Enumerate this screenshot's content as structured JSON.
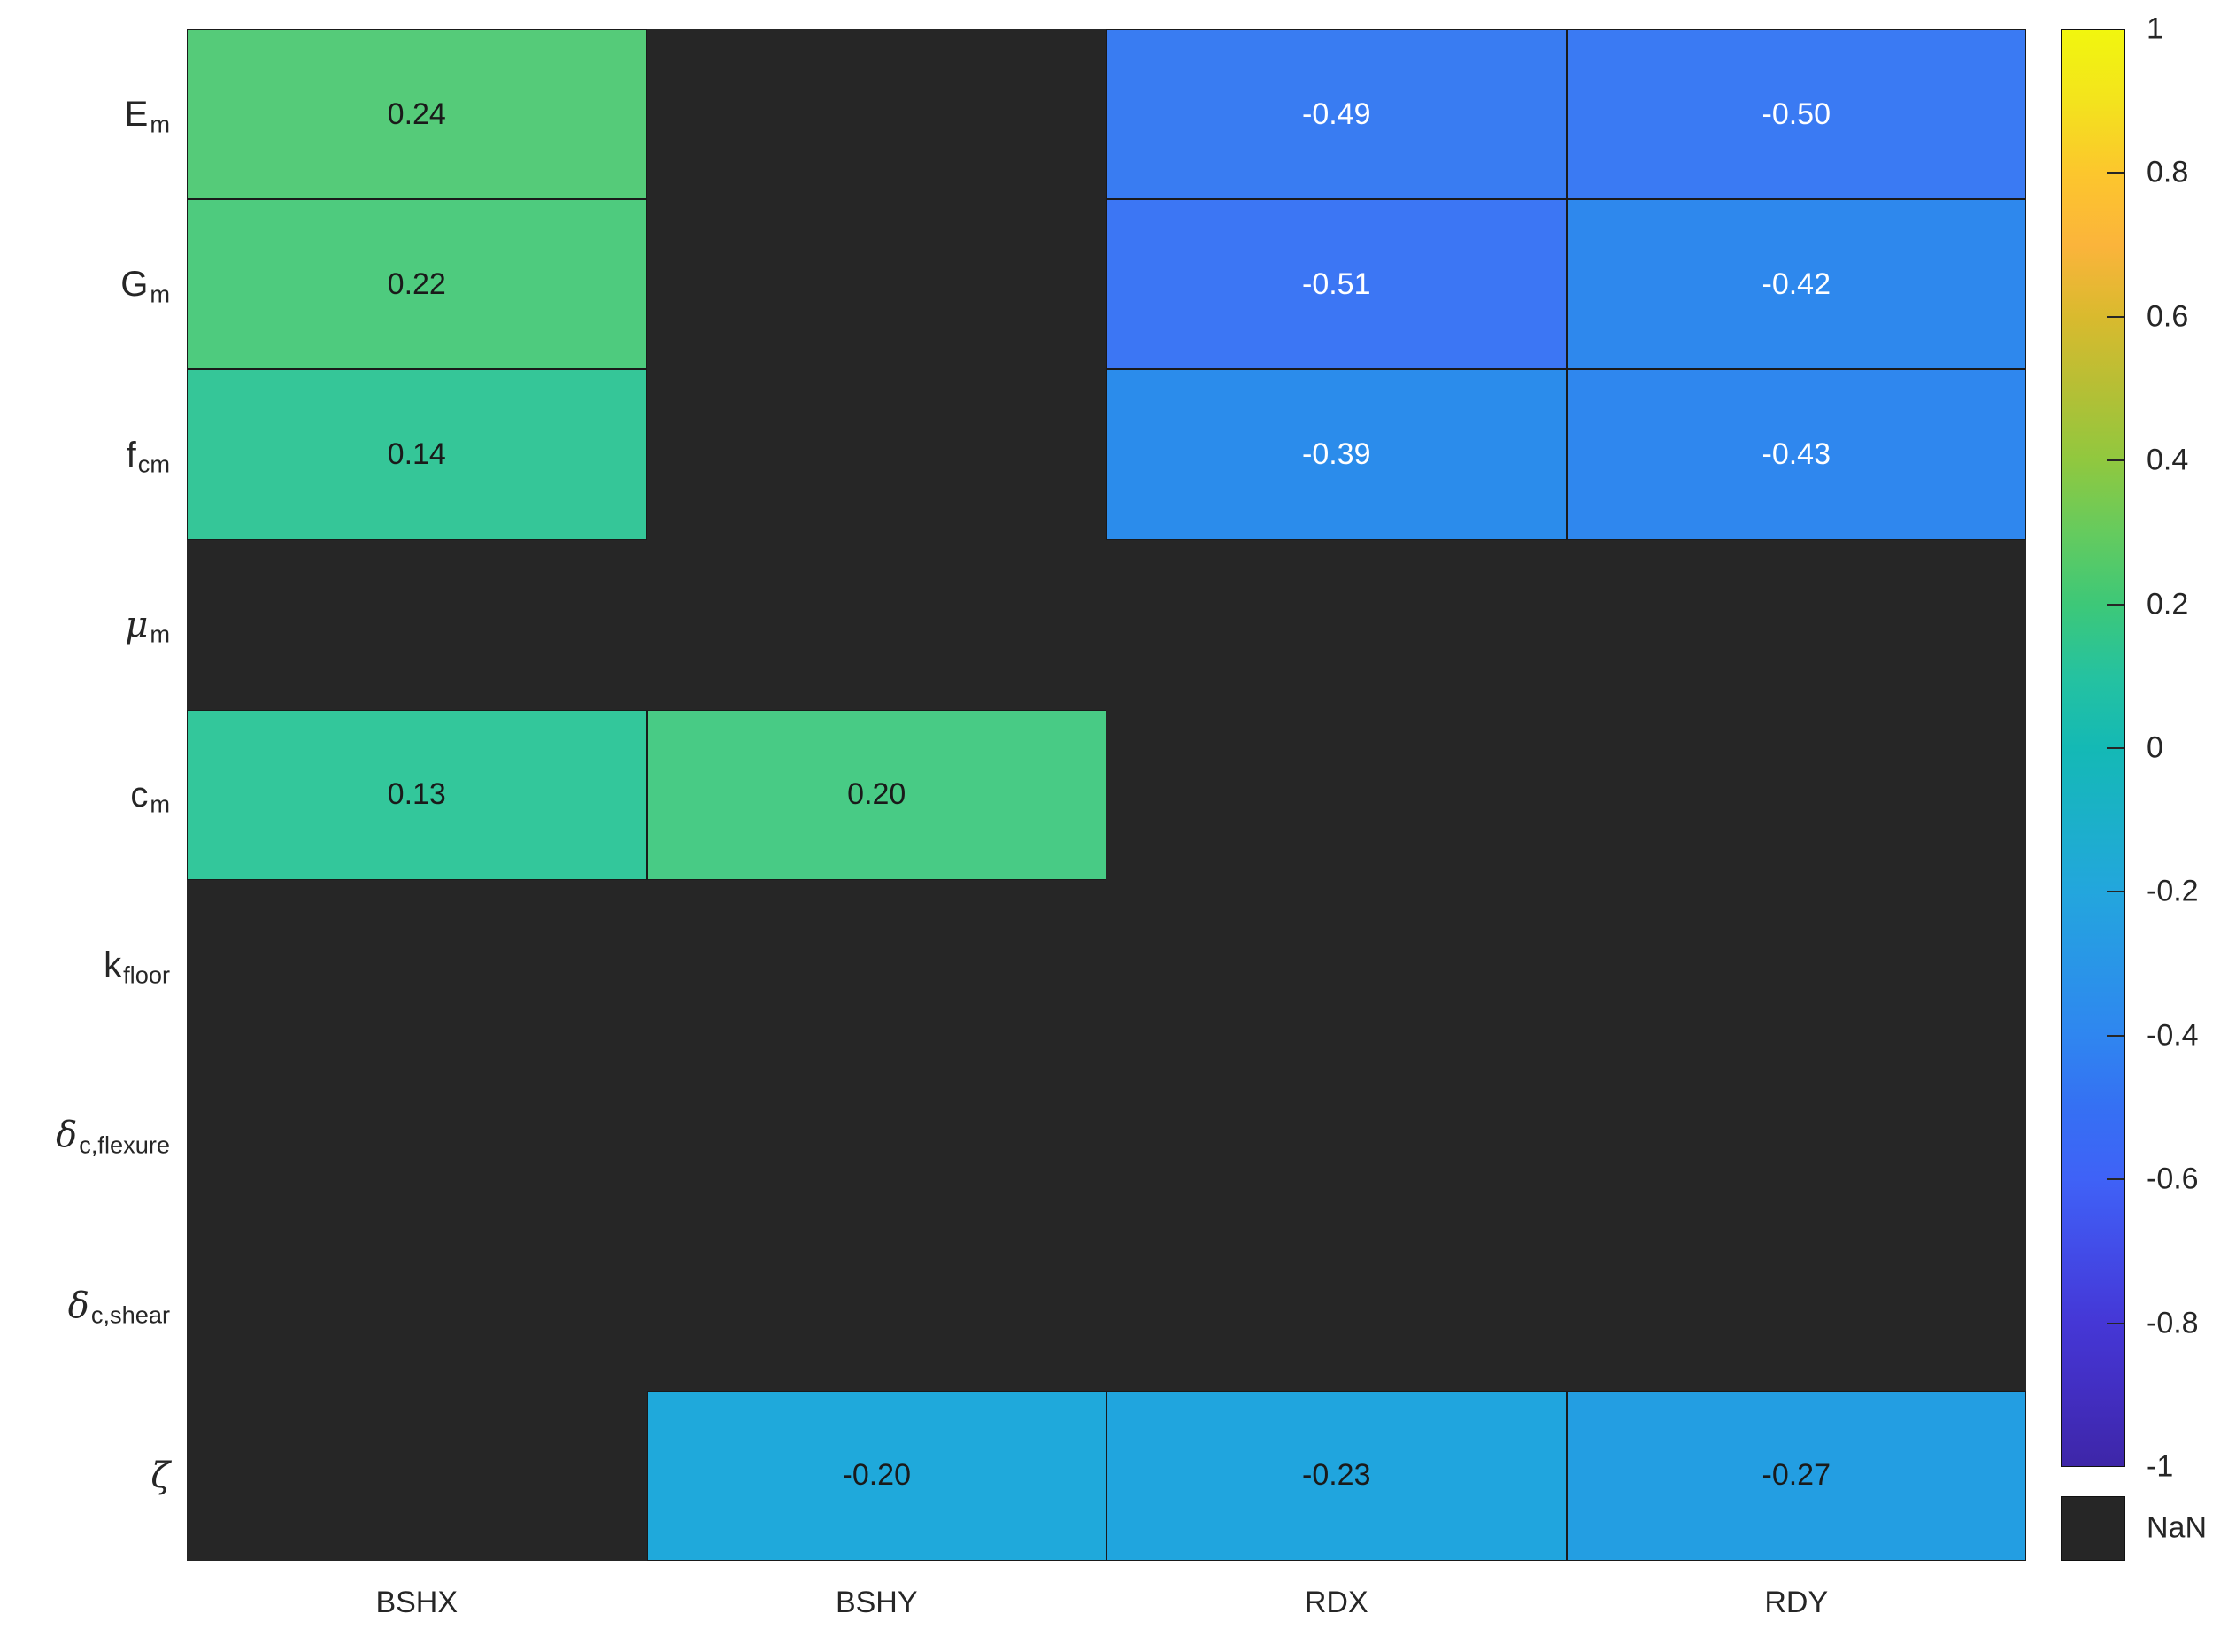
{
  "figure": {
    "background": "#ffffff",
    "nan_color": "#262626",
    "grid_line_color": "#1a1a1a"
  },
  "chart_data": {
    "type": "heatmap",
    "title": "",
    "xlabel": "",
    "ylabel": "",
    "columns": [
      "BSHX",
      "BSHY",
      "RDX",
      "RDY"
    ],
    "rows": [
      {
        "main": "E",
        "sub": "m",
        "greek": false
      },
      {
        "main": "G",
        "sub": "m",
        "greek": false
      },
      {
        "main": "f",
        "sub": "cm",
        "greek": false
      },
      {
        "main": "μ",
        "sub": "m",
        "greek": true
      },
      {
        "main": "c",
        "sub": "m",
        "greek": false
      },
      {
        "main": "k",
        "sub": "floor",
        "greek": false
      },
      {
        "main": "δ",
        "sub": "c,flexure",
        "greek": true
      },
      {
        "main": "δ",
        "sub": "c,shear",
        "greek": true
      },
      {
        "main": "ζ",
        "sub": "",
        "greek": true
      }
    ],
    "values": [
      [
        0.24,
        null,
        -0.49,
        -0.5
      ],
      [
        0.22,
        null,
        -0.51,
        -0.42
      ],
      [
        0.14,
        null,
        -0.39,
        -0.43
      ],
      [
        null,
        null,
        null,
        null
      ],
      [
        0.13,
        0.2,
        null,
        null
      ],
      [
        null,
        null,
        null,
        null
      ],
      [
        null,
        null,
        null,
        null
      ],
      [
        null,
        null,
        null,
        null
      ],
      [
        null,
        -0.2,
        -0.23,
        -0.27
      ]
    ],
    "cell_text": [
      [
        "0.24",
        "",
        "-0.49",
        "-0.50"
      ],
      [
        "0.22",
        "",
        "-0.51",
        "-0.42"
      ],
      [
        "0.14",
        "",
        "-0.39",
        "-0.43"
      ],
      [
        "",
        "",
        "",
        ""
      ],
      [
        "0.13",
        "0.20",
        "",
        ""
      ],
      [
        "",
        "",
        "",
        ""
      ],
      [
        "",
        "",
        "",
        ""
      ],
      [
        "",
        "",
        "",
        ""
      ],
      [
        "",
        "-0.20",
        "-0.23",
        "-0.27"
      ]
    ],
    "cell_colors": [
      [
        "#55cb79",
        null,
        "#397cf2",
        "#3a7af3"
      ],
      [
        "#4ecb7e",
        null,
        "#3c76f4",
        "#2e88ed"
      ],
      [
        "#35c698",
        null,
        "#2b8ceb",
        "#2f87ee"
      ],
      [
        null,
        null,
        null,
        null
      ],
      [
        "#33c79b",
        "#48cb85",
        null,
        null
      ],
      [
        null,
        null,
        null,
        null
      ],
      [
        null,
        null,
        null,
        null
      ],
      [
        null,
        null,
        null,
        null
      ],
      [
        null,
        "#1fa9db",
        "#20a5de",
        "#239ee2"
      ]
    ],
    "cell_text_colors": [
      [
        "#1a1a1a",
        null,
        "#ffffff",
        "#ffffff"
      ],
      [
        "#1a1a1a",
        null,
        "#ffffff",
        "#ffffff"
      ],
      [
        "#1a1a1a",
        null,
        "#ffffff",
        "#ffffff"
      ],
      [
        null,
        null,
        null,
        null
      ],
      [
        "#1a1a1a",
        "#1a1a1a",
        null,
        null
      ],
      [
        null,
        null,
        null,
        null
      ],
      [
        null,
        null,
        null,
        null
      ],
      [
        null,
        null,
        null,
        null
      ],
      [
        null,
        "#1a1a1a",
        "#1a1a1a",
        "#1a1a1a"
      ]
    ],
    "colorbar": {
      "min": -1,
      "max": 1,
      "tick_labels": [
        "1",
        "0.8",
        "0.6",
        "0.4",
        "0.2",
        "0",
        "-0.2",
        "-0.4",
        "-0.6",
        "-0.8",
        "-1"
      ],
      "nan_label": "NaN",
      "gradient_stops": [
        {
          "v": 1.0,
          "c": "#f2f60e"
        },
        {
          "v": 0.9,
          "c": "#f3e31d"
        },
        {
          "v": 0.8,
          "c": "#fcc62d"
        },
        {
          "v": 0.7,
          "c": "#fbb43b"
        },
        {
          "v": 0.6,
          "c": "#d9ba2e"
        },
        {
          "v": 0.5,
          "c": "#b5bf35"
        },
        {
          "v": 0.4,
          "c": "#90c83f"
        },
        {
          "v": 0.3,
          "c": "#65cb5e"
        },
        {
          "v": 0.2,
          "c": "#3dc878"
        },
        {
          "v": 0.1,
          "c": "#25c2a0"
        },
        {
          "v": 0.0,
          "c": "#14b9b5"
        },
        {
          "v": -0.1,
          "c": "#1bb0c9"
        },
        {
          "v": -0.2,
          "c": "#23a6dd"
        },
        {
          "v": -0.3,
          "c": "#2996e7"
        },
        {
          "v": -0.4,
          "c": "#2f86f0"
        },
        {
          "v": -0.5,
          "c": "#3570f3"
        },
        {
          "v": -0.6,
          "c": "#3f62f7"
        },
        {
          "v": -0.7,
          "c": "#424ce8"
        },
        {
          "v": -0.8,
          "c": "#4537d6"
        },
        {
          "v": -0.9,
          "c": "#422ec1"
        },
        {
          "v": -1.0,
          "c": "#3e26a8"
        }
      ]
    }
  }
}
